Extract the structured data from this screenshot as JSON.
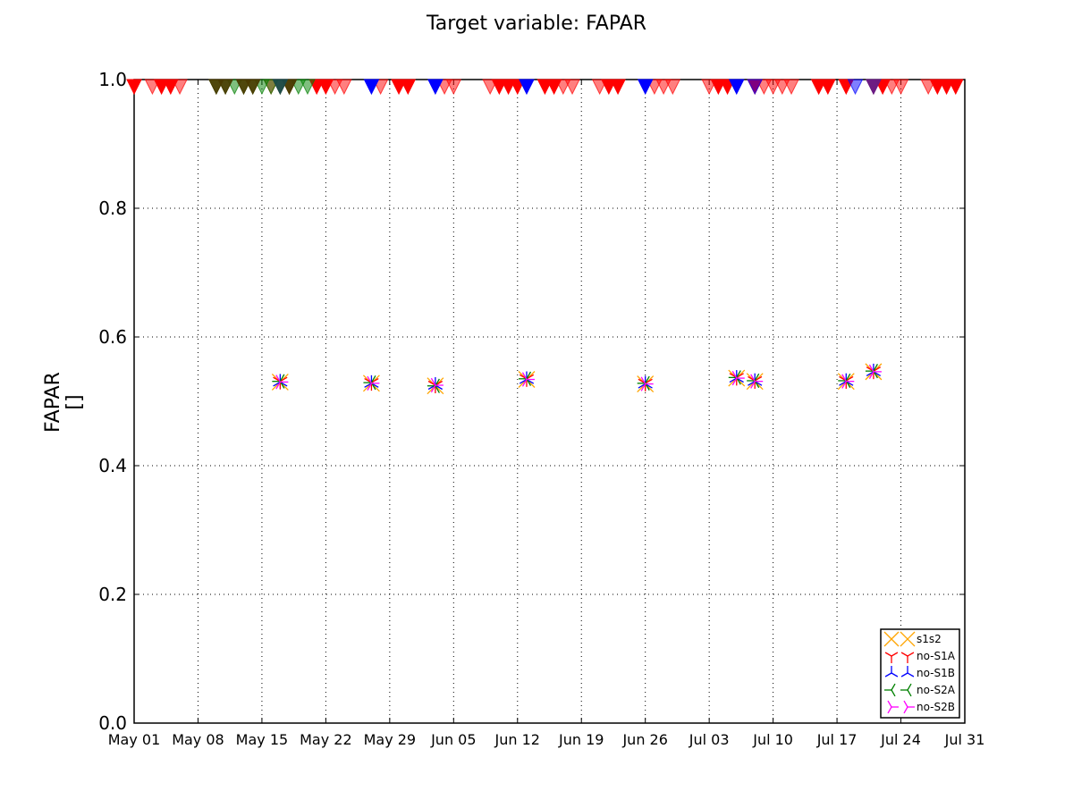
{
  "chart_data": {
    "type": "scatter",
    "title": "Target variable: FAPAR",
    "ylabel": "FAPAR",
    "yunit": "[]",
    "xlabel": "",
    "xlim": [
      "2016-05-01",
      "2016-07-31"
    ],
    "ylim": [
      0.0,
      1.0
    ],
    "xticks": [
      "May 01",
      "May 08",
      "May 15",
      "May 22",
      "May 29",
      "Jun 05",
      "Jun 12",
      "Jun 19",
      "Jun 26",
      "Jul 03",
      "Jul 10",
      "Jul 17",
      "Jul 24",
      "Jul 31"
    ],
    "yticks": [
      "0.0",
      "0.2",
      "0.4",
      "0.6",
      "0.8",
      "1.0"
    ],
    "grid": true,
    "legend_position": "lower-right",
    "series": [
      {
        "name": "s1s2",
        "marker": "x",
        "color": "#ffa500",
        "points": [
          [
            "2016-05-17",
            0.53
          ],
          [
            "2016-05-27",
            0.528
          ],
          [
            "2016-06-03",
            0.524
          ],
          [
            "2016-06-13",
            0.534
          ],
          [
            "2016-06-26",
            0.527
          ],
          [
            "2016-07-06",
            0.536
          ],
          [
            "2016-07-08",
            0.531
          ],
          [
            "2016-07-18",
            0.531
          ],
          [
            "2016-07-21",
            0.546
          ]
        ]
      },
      {
        "name": "no-S1A",
        "marker": "tri_down",
        "color": "#ff0000",
        "points": [
          [
            "2016-05-17",
            0.531
          ],
          [
            "2016-05-27",
            0.529
          ],
          [
            "2016-06-03",
            0.525
          ],
          [
            "2016-06-13",
            0.535
          ],
          [
            "2016-06-26",
            0.528
          ],
          [
            "2016-07-06",
            0.537
          ],
          [
            "2016-07-08",
            0.532
          ],
          [
            "2016-07-18",
            0.532
          ],
          [
            "2016-07-21",
            0.547
          ]
        ]
      },
      {
        "name": "no-S1B",
        "marker": "tri_up",
        "color": "#0000ff",
        "points": [
          [
            "2016-05-17",
            0.53
          ],
          [
            "2016-05-27",
            0.528
          ],
          [
            "2016-06-03",
            0.525
          ],
          [
            "2016-06-13",
            0.534
          ],
          [
            "2016-06-26",
            0.527
          ],
          [
            "2016-07-06",
            0.536
          ],
          [
            "2016-07-08",
            0.531
          ],
          [
            "2016-07-18",
            0.531
          ],
          [
            "2016-07-21",
            0.546
          ]
        ]
      },
      {
        "name": "no-S2A",
        "marker": "tri_left",
        "color": "#008000",
        "points": [
          [
            "2016-05-17",
            0.531
          ],
          [
            "2016-05-27",
            0.529
          ],
          [
            "2016-06-03",
            0.524
          ],
          [
            "2016-06-13",
            0.535
          ],
          [
            "2016-06-26",
            0.528
          ],
          [
            "2016-07-06",
            0.537
          ],
          [
            "2016-07-08",
            0.532
          ],
          [
            "2016-07-18",
            0.532
          ],
          [
            "2016-07-21",
            0.547
          ]
        ]
      },
      {
        "name": "no-S2B",
        "marker": "tri_right",
        "color": "#ff00ff",
        "points": [
          [
            "2016-05-17",
            0.53
          ],
          [
            "2016-05-27",
            0.528
          ],
          [
            "2016-06-03",
            0.525
          ],
          [
            "2016-06-13",
            0.534
          ],
          [
            "2016-06-26",
            0.527
          ],
          [
            "2016-07-06",
            0.536
          ],
          [
            "2016-07-08",
            0.531
          ],
          [
            "2016-07-18",
            0.531
          ],
          [
            "2016-07-21",
            0.546
          ]
        ]
      }
    ],
    "observations_at_top": [
      {
        "color": "#ff0000",
        "alpha": 1.0,
        "dates": [
          "2016-05-01",
          "2016-05-04",
          "2016-05-05",
          "2016-05-21",
          "2016-05-22",
          "2016-05-30",
          "2016-05-31",
          "2016-06-10",
          "2016-06-11",
          "2016-06-12",
          "2016-06-15",
          "2016-06-16",
          "2016-06-22",
          "2016-06-23",
          "2016-07-04",
          "2016-07-05",
          "2016-07-08",
          "2016-07-15",
          "2016-07-16",
          "2016-07-18",
          "2016-07-22",
          "2016-07-28",
          "2016-07-29",
          "2016-07-30"
        ]
      },
      {
        "color": "#ff0000",
        "alpha": 0.5,
        "dates": [
          "2016-05-03",
          "2016-05-06",
          "2016-05-16",
          "2016-05-17",
          "2016-05-18",
          "2016-05-23",
          "2016-05-24",
          "2016-05-28",
          "2016-06-04",
          "2016-06-05",
          "2016-06-09",
          "2016-06-17",
          "2016-06-18",
          "2016-06-21",
          "2016-06-27",
          "2016-06-28",
          "2016-06-29",
          "2016-07-03",
          "2016-07-09",
          "2016-07-10",
          "2016-07-11",
          "2016-07-12",
          "2016-07-15",
          "2016-07-23",
          "2016-07-24",
          "2016-07-27"
        ]
      },
      {
        "color": "#0000ff",
        "alpha": 1.0,
        "dates": [
          "2016-05-27",
          "2016-06-03",
          "2016-06-13",
          "2016-06-26",
          "2016-07-06"
        ]
      },
      {
        "color": "#0000ff",
        "alpha": 0.5,
        "dates": [
          "2016-07-08",
          "2016-07-19"
        ]
      },
      {
        "color": "#008000",
        "alpha": 0.5,
        "dates": [
          "2016-05-10",
          "2016-05-11",
          "2016-05-12",
          "2016-05-13",
          "2016-05-14",
          "2016-05-15",
          "2016-05-16",
          "2016-05-17",
          "2016-05-18",
          "2016-05-19",
          "2016-05-20"
        ]
      },
      {
        "color": "#4a3a00",
        "alpha": 0.9,
        "dates": [
          "2016-05-10",
          "2016-05-11",
          "2016-05-13",
          "2016-05-14",
          "2016-05-18"
        ]
      },
      {
        "color": "#1a4a4a",
        "alpha": 0.9,
        "dates": [
          "2016-05-17"
        ]
      },
      {
        "color": "#7a2a2a",
        "alpha": 0.9,
        "dates": [
          "2016-07-21"
        ]
      },
      {
        "color": "#6a1a8a",
        "alpha": 0.9,
        "dates": [
          "2016-07-21"
        ]
      }
    ]
  }
}
